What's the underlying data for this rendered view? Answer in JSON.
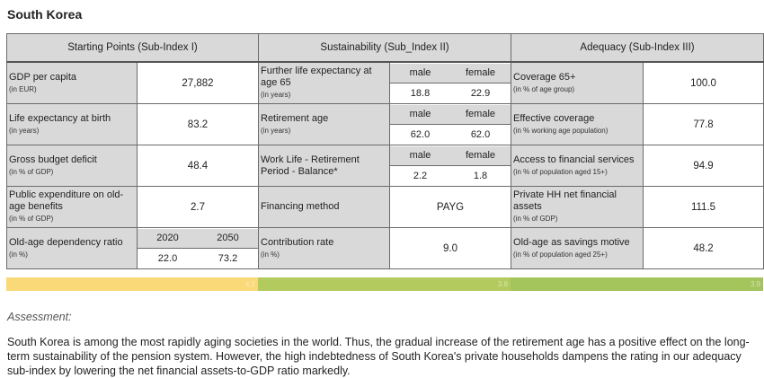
{
  "title": "South Korea",
  "headers": [
    "Starting Points (Sub-Index I)",
    "Sustainability (Sub_Index II)",
    "Adequacy (Sub-Index III)"
  ],
  "col1": [
    {
      "label": "GDP per capita",
      "unit": "(in EUR)",
      "value": "27,882"
    },
    {
      "label": "Life expectancy at birth",
      "unit": "(in years)",
      "value": "83.2"
    },
    {
      "label": "Gross budget deficit",
      "unit": "(in % of GDP)",
      "value": "48.4"
    },
    {
      "label": "Public expenditure on old-age benefits",
      "unit": "(in % of GDP)",
      "value": "2.7"
    },
    {
      "label": "Old-age dependency ratio",
      "unit": "(in %)",
      "h1": "2020",
      "h2": "2050",
      "v1": "22.0",
      "v2": "73.2"
    }
  ],
  "col2": [
    {
      "label": "Further life expectancy at age 65",
      "unit": "(in years)",
      "h1": "male",
      "h2": "female",
      "v1": "18.8",
      "v2": "22.9"
    },
    {
      "label": "Retirement age",
      "unit": "(in years)",
      "h1": "male",
      "h2": "female",
      "v1": "62.0",
      "v2": "62.0"
    },
    {
      "label": "Work Life - Retirement Period - Balance*",
      "h1": "male",
      "h2": "female",
      "v1": "2.2",
      "v2": "1.8"
    },
    {
      "label": "Financing method",
      "value": "PAYG"
    },
    {
      "label": "Contribution rate",
      "unit": "(in %)",
      "value": "9.0"
    }
  ],
  "col3": [
    {
      "label": "Coverage 65+",
      "unit": "(in % of age group)",
      "value": "100.0"
    },
    {
      "label": "Effective coverage",
      "unit": "(in % working age population)",
      "value": "77.8"
    },
    {
      "label": "Access to financial services",
      "unit": "(in % of population aged 15+)",
      "value": "94.9"
    },
    {
      "label": "Private HH net financial assets",
      "unit": "(in % of GDP)",
      "value": "111.5"
    },
    {
      "label": "Old-age as savings motive",
      "unit": "(in % of population aged 25+)",
      "value": "48.2"
    }
  ],
  "scores": [
    {
      "value": "4.2",
      "color": "#f9d978"
    },
    {
      "value": "3.8",
      "color": "#b3ca5e"
    },
    {
      "value": "3.9",
      "color": "#a4c55c"
    }
  ],
  "assessment_label": "Assessment:",
  "assessment_text": "South Korea is among the most rapidly aging societies in the world. Thus, the gradual increase of the retirement age has a positive effect on the long-term sustainability of the pension system. However, the high indebtedness of South Korea's private households dampens the rating in our adequacy sub-index by lowering the net financial assets-to-GDP ratio markedly."
}
